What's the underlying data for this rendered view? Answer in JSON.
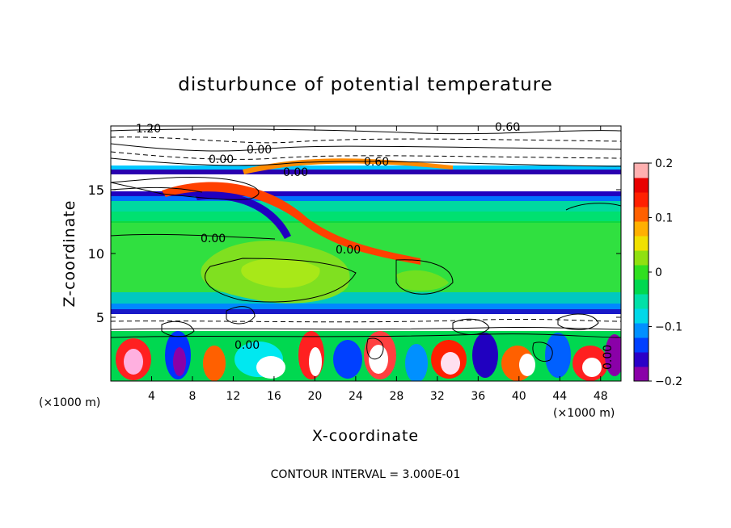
{
  "chart_data": {
    "type": "heatmap",
    "title": "disturbunce of potential temperature",
    "xlabel": "X-coordinate",
    "ylabel": "Z-coordinate",
    "x_unit": "(×1000 m)",
    "x_unit_right": "(×1000 m)",
    "xlim": [
      0,
      50
    ],
    "ylim": [
      0,
      20
    ],
    "x_ticks": [
      "4",
      "8",
      "12",
      "16",
      "20",
      "24",
      "28",
      "32",
      "36",
      "40",
      "44",
      "48"
    ],
    "y_ticks": [
      "5",
      "10",
      "15"
    ],
    "colorbar": {
      "range": [
        -0.2,
        0.2
      ],
      "ticks": [
        "0.2",
        "0.1",
        "0",
        "−0.1",
        "−0.2"
      ],
      "colors": [
        "#8a00a8",
        "#2a00c8",
        "#0040ff",
        "#0090ff",
        "#00d8e8",
        "#00e0a8",
        "#00d850",
        "#30e020",
        "#90e010",
        "#f0e000",
        "#ffb000",
        "#ff6000",
        "#ff2000",
        "#e80000",
        "#ffb0b0"
      ]
    },
    "contour_labels": [
      "1.20",
      "0.60",
      "0.00",
      "0.60",
      "0.00",
      "0.00",
      "0.00",
      "0.00",
      "0.00",
      "0.00"
    ],
    "footer": "CONTOUR INTERVAL = 3.000E-01"
  }
}
